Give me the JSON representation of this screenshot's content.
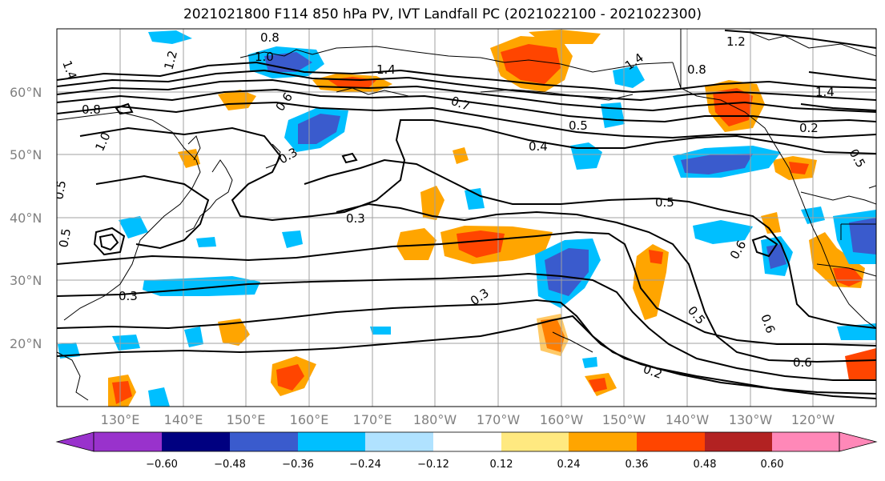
{
  "title": "2021021800 F114 850 hPa PV, IVT Landfall PC (2021022100 - 2021022300)",
  "lat_labels": [
    "60°N",
    "50°N",
    "40°N",
    "30°N",
    "20°N"
  ],
  "lon_labels": [
    "130°E",
    "140°E",
    "150°E",
    "160°E",
    "170°E",
    "180°W",
    "170°W",
    "160°W",
    "150°W",
    "140°W",
    "130°W",
    "120°W"
  ],
  "contour_labels": [
    "1.4",
    "0.8",
    "1.0",
    "1.2",
    "1.4",
    "0.7",
    "1.4",
    "0.8",
    "1.2",
    "1.4",
    "0.8",
    "0.4",
    "0.5",
    "0.3",
    "0.5",
    "0.3",
    "0.3",
    "0.6",
    "0.5",
    "0.6",
    "0.2",
    "0.6",
    "0.2",
    "0.5",
    "1.0",
    "0.6",
    "0.3",
    "0.5",
    "0.5"
  ],
  "colorbar": {
    "ticks": [
      "−0.60",
      "−0.48",
      "−0.36",
      "−0.24",
      "−0.12",
      "0.12",
      "0.24",
      "0.36",
      "0.48",
      "0.60"
    ],
    "colors": [
      "#9932cc",
      "#000080",
      "#3a5bcd",
      "#00bfff",
      "#b0e2ff",
      "#ffffff",
      "#ffe980",
      "#ffa500",
      "#ff4500",
      "#b22222",
      "#ff88b8"
    ]
  }
}
